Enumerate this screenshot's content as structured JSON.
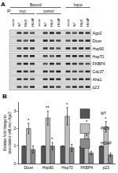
{
  "panel_labels": [
    "A",
    "B"
  ],
  "blot": {
    "ip_label": "IP:",
    "groups": [
      {
        "title": "Bound",
        "subgroups": [
          {
            "title": "myc",
            "lanes": [
              "vector",
              "WT",
              "PAZ9",
              "H634P"
            ]
          },
          {
            "title": "control",
            "lanes": [
              "vector",
              "WT",
              "PAZ9",
              "H634P"
            ]
          }
        ]
      },
      {
        "title": "Input",
        "subgroups": [
          {
            "title": "",
            "lanes": [
              "vector",
              "WT",
              "PAZ9",
              "H634P"
            ]
          }
        ]
      }
    ],
    "rows": [
      "Ago2",
      "Dicer",
      "Hsp90",
      "Hsp70",
      "FKBP4",
      "Cdc37",
      "Aha1",
      "p23"
    ]
  },
  "chart_data": {
    "type": "bar",
    "categories": [
      "Dicer",
      "Hsp90",
      "Hsp70",
      "FKBP4",
      "p23"
    ],
    "series": [
      {
        "name": "WT",
        "color": "#555555",
        "values": [
          1,
          1,
          1,
          1,
          1
        ],
        "errors": [
          0,
          0,
          0,
          0,
          0
        ]
      },
      {
        "name": "PAZ9",
        "color": "#bdbdbd",
        "values": [
          2.0,
          2.6,
          2.7,
          1.9,
          2.1
        ],
        "errors": [
          0.3,
          0.4,
          0.5,
          0.3,
          0.3
        ]
      },
      {
        "name": "H634P",
        "color": "#8a8a8a",
        "values": [
          0.8,
          1.0,
          0.9,
          0.6,
          0.5
        ],
        "errors": [
          0.2,
          0.2,
          0.2,
          0.1,
          0.1
        ]
      }
    ],
    "y_label": "Relative fold change in association with myc-Ago2",
    "ylim": [
      0,
      3.5
    ],
    "yticks": [
      0,
      1,
      2,
      3
    ],
    "legend": "upper right",
    "grid": false,
    "annotations": [
      {
        "category": "Dicer",
        "series": "PAZ9",
        "text": "*"
      },
      {
        "category": "Hsp90",
        "series": "PAZ9",
        "text": "**"
      },
      {
        "category": "Hsp70",
        "series": "PAZ9",
        "text": "*"
      },
      {
        "category": "FKBP4",
        "series": "PAZ9",
        "text": "*"
      },
      {
        "category": "p23",
        "series": "PAZ9",
        "text": "*"
      },
      {
        "category": "Hsp90",
        "series": "H634P",
        "text": "*"
      }
    ]
  }
}
